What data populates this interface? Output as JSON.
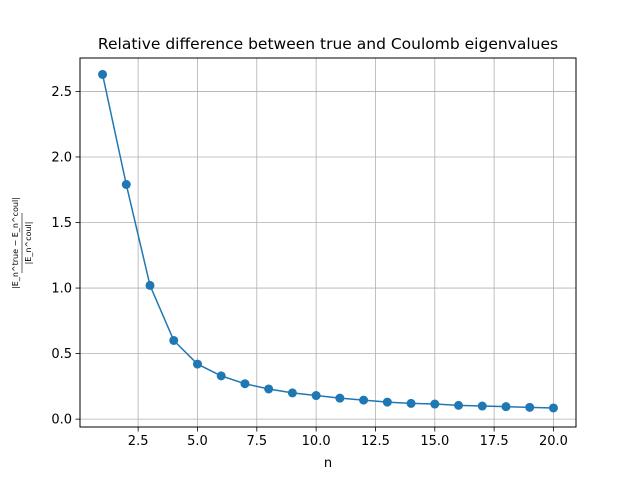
{
  "chart_data": {
    "type": "line",
    "title": "Relative difference between true and Coulomb eigenvalues",
    "xlabel": "n",
    "ylabel": {
      "numerator": "|E_n^true − E_n^coul|",
      "denominator": "|E_n^coul|"
    },
    "xlim": [
      0.05,
      20.95
    ],
    "ylim": [
      -0.06,
      2.755
    ],
    "xticks": [
      2.5,
      5.0,
      7.5,
      10.0,
      12.5,
      15.0,
      17.5,
      20.0
    ],
    "xtick_labels": [
      "2.5",
      "5.0",
      "7.5",
      "10.0",
      "12.5",
      "15.0",
      "17.5",
      "20.0"
    ],
    "yticks": [
      0.0,
      0.5,
      1.0,
      1.5,
      2.0,
      2.5
    ],
    "ytick_labels": [
      "0.0",
      "0.5",
      "1.0",
      "1.5",
      "2.0",
      "2.5"
    ],
    "grid": true,
    "color": "#1f77b4",
    "marker": "circle",
    "x": [
      1,
      2,
      3,
      4,
      5,
      6,
      7,
      8,
      9,
      10,
      11,
      12,
      13,
      14,
      15,
      16,
      17,
      18,
      19,
      20
    ],
    "y": [
      2.63,
      1.79,
      1.02,
      0.6,
      0.42,
      0.33,
      0.27,
      0.23,
      0.2,
      0.18,
      0.16,
      0.145,
      0.13,
      0.12,
      0.115,
      0.105,
      0.1,
      0.095,
      0.09,
      0.085
    ]
  }
}
